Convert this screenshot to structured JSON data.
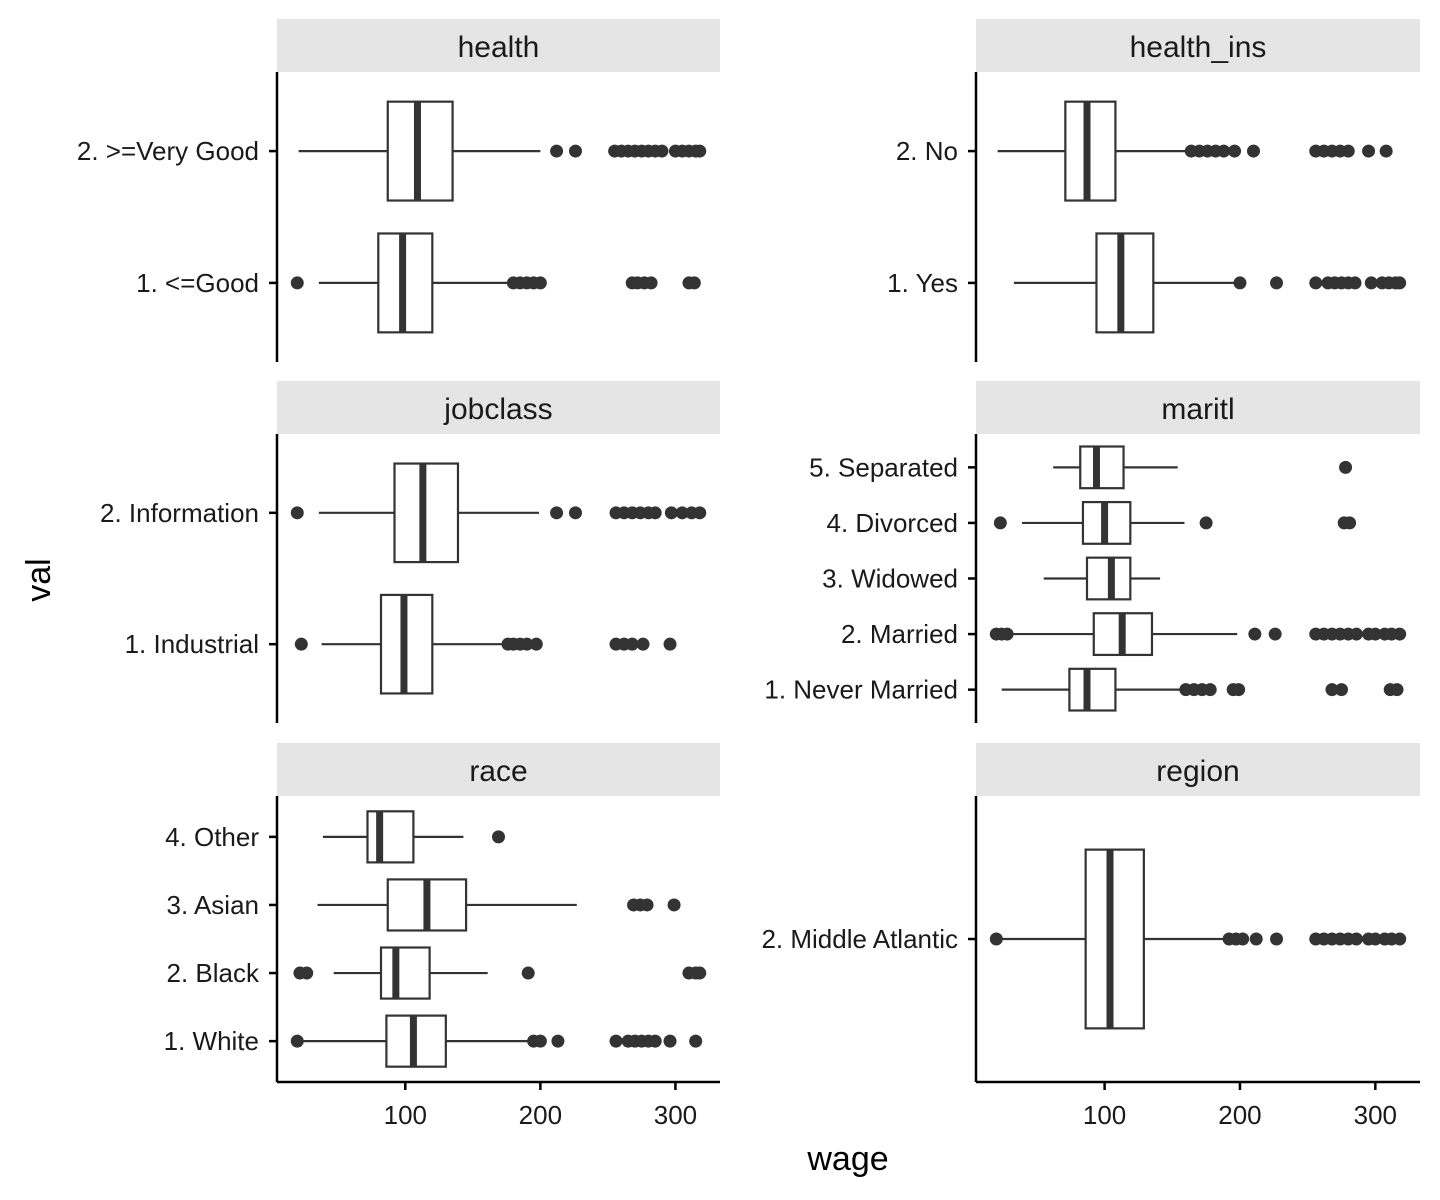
{
  "chart_data": {
    "type": "boxplot",
    "layout": "facet-wrap 3 rows x 2 columns, free y",
    "xlabel": "wage",
    "ylabel": "val",
    "xlim": [
      5,
      333
    ],
    "xticks": [
      100,
      200,
      300
    ],
    "grid": false,
    "colors": {
      "box_stroke": "#333333",
      "strip_fill": "#e5e5e5",
      "outlier": "#333333"
    },
    "panels": [
      {
        "title": "health",
        "groups": [
          {
            "label": "2. >=Very Good",
            "whisker_low": 21,
            "q1": 87,
            "median": 109,
            "q3": 135,
            "whisker_high": 200,
            "outliers": [
              212,
              226,
              255,
              260,
              265,
              270,
              275,
              280,
              285,
              290,
              300,
              305,
              310,
              315,
              318
            ]
          },
          {
            "label": "1. <=Good",
            "whisker_low": 36,
            "q1": 80,
            "median": 98,
            "q3": 120,
            "whisker_high": 178,
            "outliers": [
              20,
              180,
              185,
              190,
              195,
              200,
              268,
              272,
              277,
              282,
              310,
              314
            ]
          }
        ]
      },
      {
        "title": "health_ins",
        "groups": [
          {
            "label": "2. No",
            "whisker_low": 21,
            "q1": 71,
            "median": 87,
            "q3": 108,
            "whisker_high": 162,
            "outliers": [
              164,
              170,
              176,
              182,
              188,
              196,
              210,
              256,
              262,
              268,
              274,
              280,
              295,
              308
            ]
          },
          {
            "label": "1. Yes",
            "whisker_low": 33,
            "q1": 94,
            "median": 112,
            "q3": 136,
            "whisker_high": 198,
            "outliers": [
              200,
              227,
              256,
              265,
              270,
              275,
              280,
              285,
              297,
              305,
              310,
              315,
              318
            ]
          }
        ]
      },
      {
        "title": "jobclass",
        "groups": [
          {
            "label": "2. Information",
            "whisker_low": 36,
            "q1": 92,
            "median": 113,
            "q3": 139,
            "whisker_high": 199,
            "outliers": [
              20,
              212,
              226,
              256,
              262,
              268,
              274,
              280,
              285,
              297,
              305,
              312,
              318
            ]
          },
          {
            "label": "1. Industrial",
            "whisker_low": 38,
            "q1": 82,
            "median": 99,
            "q3": 120,
            "whisker_high": 175,
            "outliers": [
              23,
              176,
              180,
              185,
              190,
              197,
              256,
              262,
              268,
              276,
              296
            ]
          }
        ]
      },
      {
        "title": "maritl",
        "groups": [
          {
            "label": "5. Separated",
            "whisker_low": 62,
            "q1": 82,
            "median": 94,
            "q3": 114,
            "whisker_high": 154,
            "outliers": [
              278
            ]
          },
          {
            "label": "4. Divorced",
            "whisker_low": 39,
            "q1": 84,
            "median": 100,
            "q3": 119,
            "whisker_high": 159,
            "outliers": [
              23,
              175,
              277,
              281
            ]
          },
          {
            "label": "3. Widowed",
            "whisker_low": 55,
            "q1": 87,
            "median": 105,
            "q3": 119,
            "whisker_high": 141,
            "outliers": []
          },
          {
            "label": "2. Married",
            "whisker_low": 30,
            "q1": 92,
            "median": 113,
            "q3": 135,
            "whisker_high": 198,
            "outliers": [
              20,
              24,
              28,
              211,
              226,
              256,
              262,
              268,
              274,
              280,
              286,
              295,
              300,
              307,
              312,
              318
            ]
          },
          {
            "label": "1. Never Married",
            "whisker_low": 24,
            "q1": 74,
            "median": 87,
            "q3": 108,
            "whisker_high": 158,
            "outliers": [
              160,
              166,
              172,
              178,
              195,
              199,
              268,
              275,
              311,
              316
            ]
          }
        ]
      },
      {
        "title": "race",
        "groups": [
          {
            "label": "4. Other",
            "whisker_low": 39,
            "q1": 72,
            "median": 81,
            "q3": 106,
            "whisker_high": 143,
            "outliers": [
              169
            ]
          },
          {
            "label": "3. Asian",
            "whisker_low": 35,
            "q1": 87,
            "median": 116,
            "q3": 145,
            "whisker_high": 227,
            "outliers": [
              269,
              274,
              279,
              299
            ]
          },
          {
            "label": "2. Black",
            "whisker_low": 47,
            "q1": 82,
            "median": 93,
            "q3": 118,
            "whisker_high": 161,
            "outliers": [
              22,
              27,
              191,
              310,
              315,
              318
            ]
          },
          {
            "label": "1. White",
            "whisker_low": 21,
            "q1": 86,
            "median": 106,
            "q3": 130,
            "whisker_high": 193,
            "outliers": [
              20,
              195,
              200,
              213,
              256,
              265,
              270,
              275,
              280,
              285,
              296,
              315
            ]
          }
        ]
      },
      {
        "title": "region",
        "groups": [
          {
            "label": "2. Middle Atlantic",
            "whisker_low": 20,
            "q1": 86,
            "median": 104,
            "q3": 129,
            "whisker_high": 190,
            "outliers": [
              20,
              192,
              197,
              202,
              212,
              227,
              256,
              262,
              268,
              274,
              280,
              286,
              295,
              300,
              307,
              312,
              318
            ]
          }
        ]
      }
    ]
  }
}
